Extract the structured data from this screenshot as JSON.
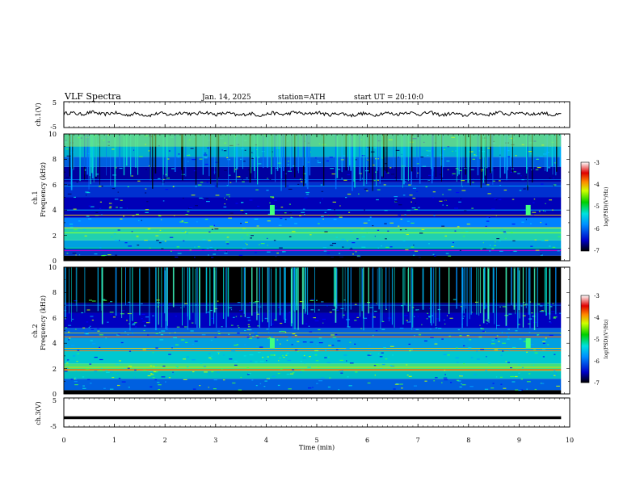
{
  "header": {
    "title": "VLF  Spectra",
    "date": "Jan. 14, 2025",
    "station": "station=ATH",
    "start": "start  UT  =  20:10:0"
  },
  "chart_data": [
    {
      "type": "line",
      "ylabel": "ch.1(V)",
      "ylim": [
        -5,
        5
      ],
      "yticks": [
        "5",
        "-5"
      ],
      "approx_level": 0.3,
      "series": [
        {
          "values": [
            0.4,
            0.6,
            0.2,
            0.7,
            0.3,
            0.5,
            0.8,
            0.2,
            0.4,
            0.6,
            0.3,
            0.7,
            0.5,
            0.2,
            0.6,
            0.4,
            0.8,
            0.3,
            0.5,
            0.1
          ]
        }
      ]
    },
    {
      "type": "heatmap",
      "ylabel_top": "ch.1",
      "ylabel": "Frequency  (kHz)",
      "ylim": [
        0,
        10
      ],
      "yticks": [
        "0",
        "2",
        "4",
        "6",
        "8",
        "10"
      ],
      "colorbar": {
        "label": "log(PSD)(V²/Hz)",
        "ticks": [
          "-3",
          "-4",
          "-5",
          "-6",
          "-7"
        ],
        "range": [
          -7,
          -3
        ],
        "colors": [
          "#000000",
          "#0000c8",
          "#0090ff",
          "#00e0e0",
          "#00d000",
          "#d0ff00",
          "#ff8800",
          "#e00000",
          "#ffffff"
        ]
      }
    },
    {
      "type": "heatmap",
      "ylabel_top": "ch.2",
      "ylabel": "Frequency  (kHz)",
      "ylim": [
        0,
        10
      ],
      "yticks": [
        "0",
        "2",
        "4",
        "6",
        "8",
        "10"
      ],
      "colorbar": {
        "label": "log(PSD)(V²/Hz)",
        "ticks": [
          "-3",
          "-4",
          "-5",
          "-6",
          "-7"
        ],
        "range": [
          -7,
          -3
        ],
        "colors": [
          "#000000",
          "#0000c8",
          "#0090ff",
          "#00e0e0",
          "#00d000",
          "#d0ff00",
          "#ff8800",
          "#e00000",
          "#ffffff"
        ]
      }
    },
    {
      "type": "line",
      "ylabel": "ch.3(V)",
      "ylim": [
        -5,
        5
      ],
      "yticks": [
        "5",
        "-5"
      ],
      "approx_level": -1.8,
      "series": [
        {
          "values": [
            -1.8,
            -1.8,
            -1.8,
            -1.8,
            -1.8,
            -1.8,
            -1.8,
            -1.8,
            -1.8,
            -1.8
          ]
        }
      ]
    }
  ],
  "xaxis": {
    "label": "Time  (min)",
    "ticks": [
      "0",
      "1",
      "2",
      "3",
      "4",
      "5",
      "6",
      "7",
      "8",
      "9",
      "10"
    ],
    "range": [
      0,
      10
    ],
    "data_end": 9.83
  }
}
